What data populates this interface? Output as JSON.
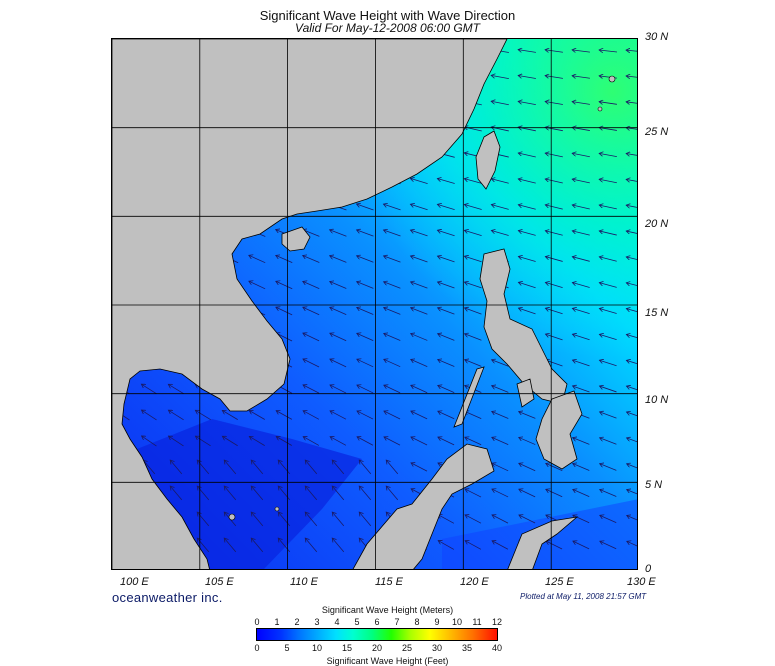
{
  "title": "Significant Wave Height with Wave Direction",
  "subtitle": "Valid For May-12-2008 06:00 GMT",
  "brand": "oceanweather inc.",
  "plotted": "Plotted at May 11, 2008 21:57 GMT",
  "lat_labels": [
    "30 N",
    "25 N",
    "20 N",
    "15 N",
    "10 N",
    "5 N",
    "0"
  ],
  "lon_labels": [
    "100 E",
    "105 E",
    "110 E",
    "115 E",
    "120 E",
    "125 E",
    "130 E"
  ],
  "colorbar": {
    "title_meters": "Significant Wave Height (Meters)",
    "title_feet": "Significant Wave Height (Feet)",
    "meters_ticks": [
      "0",
      "1",
      "2",
      "3",
      "4",
      "5",
      "6",
      "7",
      "8",
      "9",
      "10",
      "11",
      "12"
    ],
    "feet_ticks": [
      "0",
      "5",
      "10",
      "15",
      "20",
      "25",
      "30",
      "35",
      "40"
    ]
  },
  "colors": {
    "land": "#c0c0c0",
    "deep_blue": "#0a28f0",
    "cyan": "#00e8ff",
    "green": "#20ff70",
    "arrow": "#1a1a66"
  }
}
